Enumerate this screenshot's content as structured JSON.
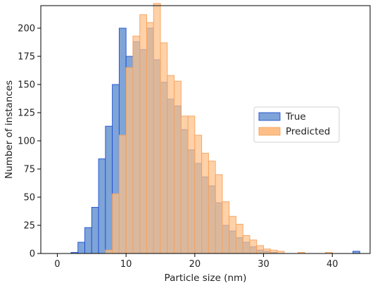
{
  "chart_data": {
    "type": "bar",
    "subtype": "overlapping-histogram",
    "title": "",
    "xlabel": "Particle size (nm)",
    "ylabel": "Number of instances",
    "xlim": [
      -2.4,
      45.5
    ],
    "ylim": [
      0,
      220
    ],
    "xticks": [
      0,
      10,
      20,
      30,
      40
    ],
    "yticks": [
      0,
      25,
      50,
      75,
      100,
      125,
      150,
      175,
      200
    ],
    "grid": false,
    "legend_position": "center-right",
    "series": [
      {
        "name": "True",
        "face_color": "#7ea4d8",
        "edge_color": "#1f4fd1",
        "bin_width": 1.0,
        "bin_starts": [
          2,
          3,
          4,
          5,
          6,
          7,
          8,
          9,
          10,
          11,
          12,
          13,
          14,
          15,
          16,
          17,
          18,
          19,
          20,
          21,
          22,
          23,
          24,
          25,
          26,
          27,
          28,
          29,
          30,
          31,
          43
        ],
        "values": [
          1,
          10,
          23,
          41,
          84,
          113,
          150,
          200,
          175,
          188,
          181,
          200,
          172,
          152,
          137,
          131,
          110,
          92,
          80,
          68,
          60,
          45,
          25,
          20,
          14,
          10,
          6,
          3,
          2,
          1,
          2
        ]
      },
      {
        "name": "Predicted",
        "face_color": "#fdbf87",
        "edge_color": "#f7a25a",
        "bin_width": 1.0,
        "bin_starts": [
          7,
          8,
          9,
          10,
          11,
          12,
          13,
          14,
          15,
          16,
          17,
          18,
          19,
          20,
          21,
          22,
          23,
          24,
          25,
          26,
          27,
          28,
          29,
          30,
          31,
          32,
          35,
          39
        ],
        "values": [
          3,
          53,
          105,
          165,
          193,
          212,
          205,
          222,
          187,
          158,
          153,
          122,
          122,
          105,
          89,
          82,
          70,
          46,
          33,
          26,
          16,
          12,
          7,
          4,
          3,
          2,
          1,
          1
        ]
      }
    ]
  }
}
